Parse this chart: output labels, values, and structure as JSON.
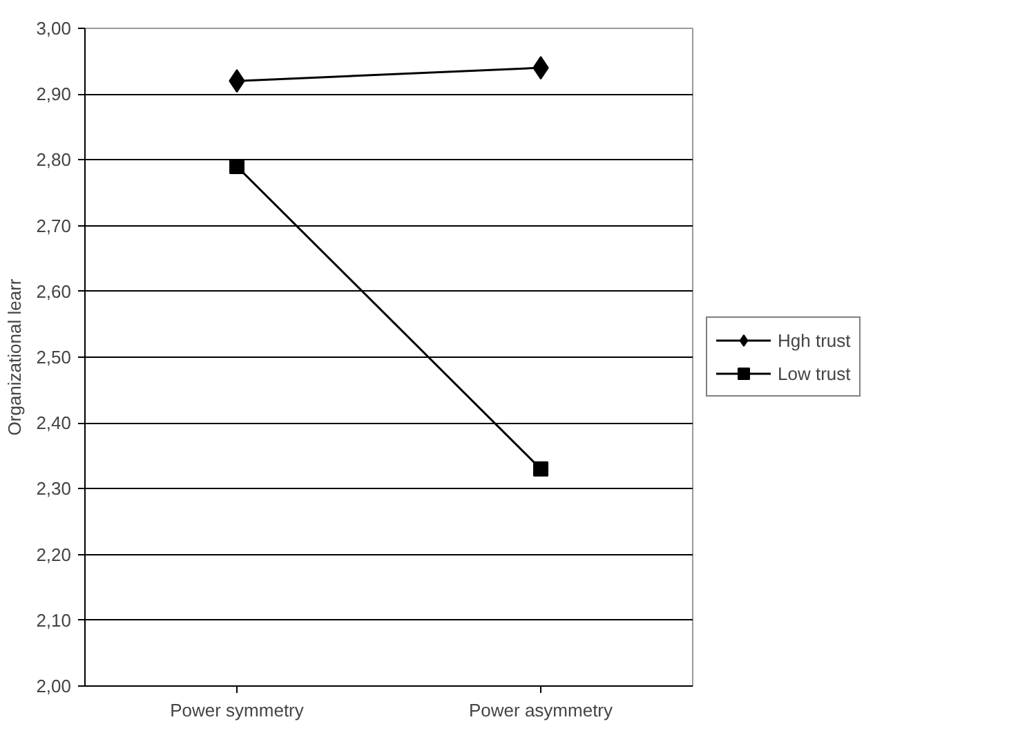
{
  "chart_data": {
    "type": "line",
    "ylabel": "Organizational learr",
    "categories": [
      "Power symmetry",
      "Power asymmetry"
    ],
    "series": [
      {
        "name": "Hgh trust",
        "color": "#000000",
        "values": [
          2.92,
          2.94
        ],
        "marker": "diamond"
      },
      {
        "name": "Low trust",
        "color": "#000000",
        "values": [
          2.79,
          2.33
        ],
        "marker": "square"
      }
    ],
    "ylim": [
      2.0,
      3.0
    ],
    "yticks": [
      {
        "value": 2.0,
        "label": "2,00"
      },
      {
        "value": 2.1,
        "label": "2,10"
      },
      {
        "value": 2.2,
        "label": "2,20"
      },
      {
        "value": 2.3,
        "label": "2,30"
      },
      {
        "value": 2.4,
        "label": "2,40"
      },
      {
        "value": 2.5,
        "label": "2,50"
      },
      {
        "value": 2.6,
        "label": "2,60"
      },
      {
        "value": 2.7,
        "label": "2,70"
      },
      {
        "value": 2.8,
        "label": "2,80"
      },
      {
        "value": 2.9,
        "label": "2,90"
      },
      {
        "value": 3.0,
        "label": "3,00"
      }
    ],
    "grid": "y",
    "legend": "right",
    "line_style": "solid"
  }
}
